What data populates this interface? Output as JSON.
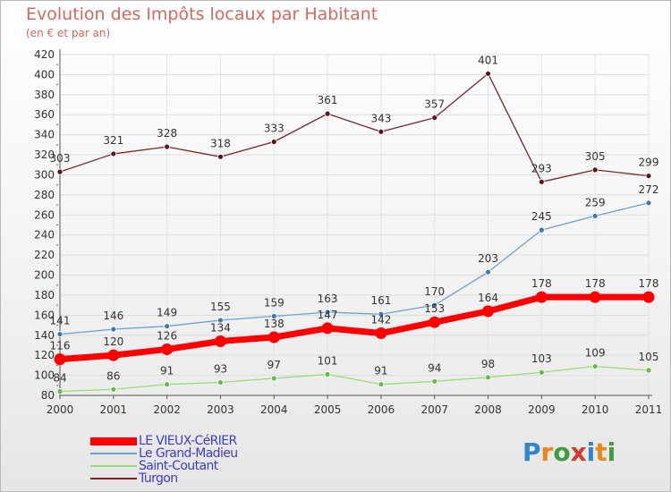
{
  "title": "Evolution des Impôts locaux par Habitant",
  "subtitle": "(en € et par an)",
  "logo": {
    "chars": [
      "P",
      "r",
      "o",
      "x",
      "i",
      "t",
      "i"
    ],
    "colors": [
      "#2f86c8",
      "#e8881a",
      "#3f9c3f",
      "#d23c2c",
      "#2f86c8",
      "#e8881a",
      "#3f9c3f"
    ]
  },
  "chart_data": {
    "type": "line",
    "title": "Evolution des Impôts locaux par Habitant",
    "subtitle": "(en € et par an)",
    "xlabel": "",
    "ylabel": "",
    "x": [
      "2000",
      "2001",
      "2002",
      "2003",
      "2004",
      "2005",
      "2006",
      "2007",
      "2008",
      "2009",
      "2010",
      "2011"
    ],
    "ylim": [
      80,
      420
    ],
    "yticks": [
      80,
      100,
      120,
      140,
      160,
      180,
      200,
      220,
      240,
      260,
      280,
      300,
      320,
      340,
      360,
      380,
      400,
      420
    ],
    "grid": true,
    "legend": "bottom-left",
    "series": [
      {
        "name": "LE VIEUX-CéRIER",
        "color": "#ff0000",
        "values": [
          116,
          120,
          126,
          134,
          138,
          147,
          142,
          153,
          164,
          178,
          178,
          178
        ]
      },
      {
        "name": "Le Grand-Madieu",
        "color": "#6fa0cf",
        "values": [
          141,
          146,
          149,
          155,
          159,
          163,
          161,
          170,
          203,
          245,
          259,
          272
        ]
      },
      {
        "name": "Saint-Coutant",
        "color": "#99dd77",
        "values": [
          84,
          86,
          91,
          93,
          97,
          101,
          91,
          94,
          98,
          103,
          109,
          105
        ]
      },
      {
        "name": "Turgon",
        "color": "#7a2626",
        "values": [
          303,
          321,
          328,
          318,
          333,
          361,
          343,
          357,
          401,
          293,
          305,
          299
        ]
      }
    ]
  }
}
